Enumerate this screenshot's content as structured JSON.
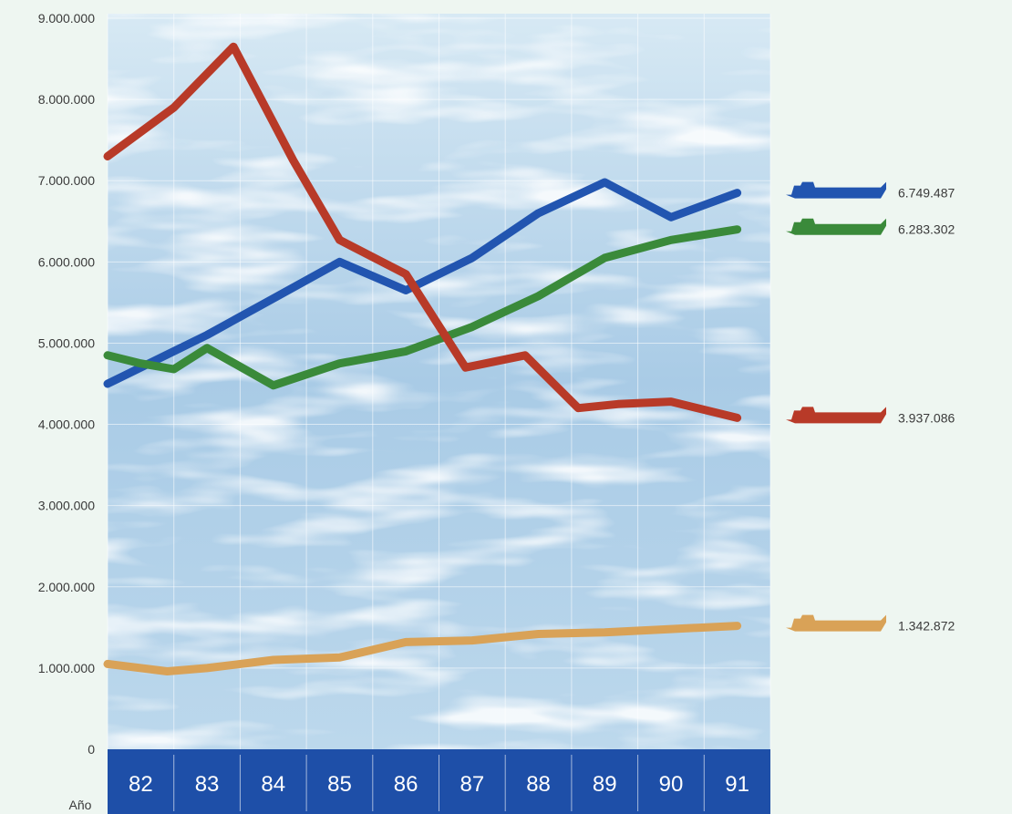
{
  "chart_data": {
    "type": "line",
    "title": "",
    "xlabel": "Año",
    "ylabel": "",
    "x": [
      "82",
      "83",
      "84",
      "85",
      "86",
      "87",
      "88",
      "89",
      "90",
      "91"
    ],
    "ylim": [
      0,
      9000000
    ],
    "yticks": [
      {
        "value": 0,
        "label": "0"
      },
      {
        "value": 1000000,
        "label": "1.000.000"
      },
      {
        "value": 2000000,
        "label": "2.000.000"
      },
      {
        "value": 3000000,
        "label": "3.000.000"
      },
      {
        "value": 4000000,
        "label": "4.000.000"
      },
      {
        "value": 5000000,
        "label": "5.000.000"
      },
      {
        "value": 6000000,
        "label": "6.000.000"
      },
      {
        "value": 7000000,
        "label": "7.000.000"
      },
      {
        "value": 8000000,
        "label": "8.000.000"
      },
      {
        "value": 9000000,
        "label": "9.000.000"
      }
    ],
    "grid": true,
    "legend_position": "right",
    "series": [
      {
        "color": "#2255b0",
        "legend_value": "6.749.487",
        "x": [
          81.5,
          83,
          84,
          85,
          86,
          87,
          88,
          89,
          90,
          91
        ],
        "values": [
          4500000,
          5100000,
          5550000,
          6000000,
          5650000,
          6050000,
          6600000,
          6980000,
          6550000,
          6850000
        ]
      },
      {
        "color": "#3a8a3a",
        "legend_value": "6.283.302",
        "x": [
          81.5,
          82,
          82.5,
          83,
          84,
          85,
          86,
          87,
          88,
          89,
          90,
          91
        ],
        "values": [
          4850000,
          4750000,
          4680000,
          4940000,
          4480000,
          4750000,
          4900000,
          5200000,
          5580000,
          6050000,
          6270000,
          6400000
        ]
      },
      {
        "color": "#b83a28",
        "legend_value": "3.937.086",
        "x": [
          81.5,
          82.5,
          83.4,
          84.3,
          85,
          86,
          86.9,
          87.8,
          88.6,
          89.2,
          90,
          91
        ],
        "values": [
          7300000,
          7900000,
          8650000,
          7250000,
          6270000,
          5850000,
          4700000,
          4850000,
          4200000,
          4250000,
          4280000,
          4080000
        ]
      },
      {
        "color": "#d9a257",
        "legend_value": "1.342.872",
        "x": [
          81.5,
          82.4,
          83,
          84,
          85,
          86,
          87,
          88,
          89,
          90,
          91
        ],
        "values": [
          1050000,
          960000,
          1000000,
          1100000,
          1130000,
          1320000,
          1340000,
          1420000,
          1440000,
          1480000,
          1520000
        ]
      }
    ]
  },
  "legend_icon": "ship-icon"
}
